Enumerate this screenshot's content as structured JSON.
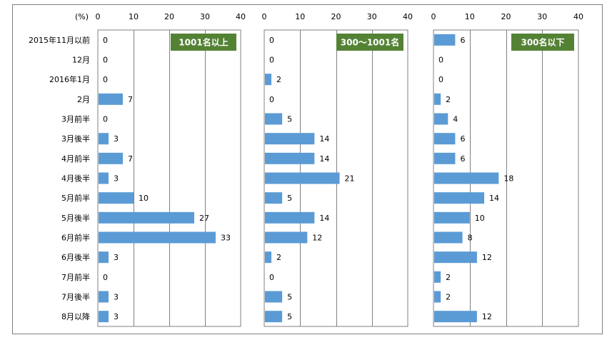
{
  "chart_data": {
    "type": "bar",
    "orientation": "horizontal",
    "unit_label": "(%)",
    "xlim": [
      0,
      40
    ],
    "xticks": [
      0,
      10,
      20,
      30,
      40
    ],
    "grid": true,
    "categories": [
      "2015年11月以前",
      "12月",
      "2016年1月",
      "2月",
      "3月前半",
      "3月後半",
      "4月前半",
      "4月後半",
      "5月前半",
      "5月後半",
      "6月前半",
      "6月後半",
      "7月前半",
      "7月後半",
      "8月以降"
    ],
    "series": [
      {
        "name": "1001名以上",
        "values": [
          0,
          0,
          0,
          7,
          0,
          3,
          7,
          3,
          10,
          27,
          33,
          3,
          0,
          3,
          3
        ]
      },
      {
        "name": "300〜1001名",
        "values": [
          0,
          0,
          2,
          0,
          5,
          14,
          14,
          21,
          5,
          14,
          12,
          2,
          0,
          5,
          5
        ]
      },
      {
        "name": "300名以下",
        "values": [
          6,
          0,
          0,
          2,
          4,
          6,
          6,
          18,
          14,
          10,
          8,
          12,
          2,
          2,
          12
        ]
      }
    ],
    "colors": {
      "bar": "#5b9bd5",
      "badge": "#548235",
      "grid": "#808080"
    }
  }
}
